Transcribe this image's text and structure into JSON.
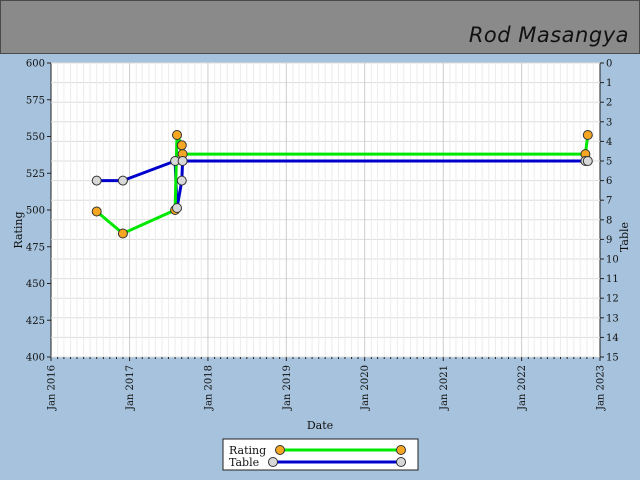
{
  "header": {
    "name": "Rod Masangya"
  },
  "chart_data": {
    "type": "line",
    "xlabel": "Date",
    "ylabel_left": "Rating",
    "ylabel_right": "Table",
    "ylim_left": [
      400,
      600
    ],
    "ylim_right": [
      0,
      15
    ],
    "left_ticks": [
      400,
      425,
      450,
      475,
      500,
      525,
      550,
      575,
      600
    ],
    "right_ticks": [
      0,
      1,
      2,
      3,
      4,
      5,
      6,
      7,
      8,
      9,
      10,
      11,
      12,
      13,
      14,
      15
    ],
    "x_ticks": [
      "Jan 2016",
      "Jan 2017",
      "Jan 2018",
      "Jan 2019",
      "Jan 2020",
      "Jan 2021",
      "Jan 2022",
      "Jan 2023"
    ],
    "grid": true,
    "legend_position": "bottom-center",
    "series": [
      {
        "name": "Rating",
        "axis": "left",
        "color": "#00e800",
        "marker_color": "#f5a623",
        "points": [
          [
            "2016-08-01",
            499
          ],
          [
            "2016-12-01",
            484
          ],
          [
            "2017-08-01",
            500
          ],
          [
            "2017-08-10",
            551
          ],
          [
            "2017-09-01",
            544
          ],
          [
            "2017-09-05",
            538
          ],
          [
            "2022-10-25",
            538
          ],
          [
            "2022-11-05",
            551
          ]
        ]
      },
      {
        "name": "Table",
        "axis": "right",
        "color": "#0000cc",
        "marker_color": "#d8d8d8",
        "points": [
          [
            "2016-08-01",
            6
          ],
          [
            "2016-12-01",
            6
          ],
          [
            "2017-08-01",
            5
          ],
          [
            "2017-08-10",
            7.4
          ],
          [
            "2017-09-01",
            6
          ],
          [
            "2017-09-05",
            5
          ],
          [
            "2022-10-25",
            5
          ],
          [
            "2022-11-05",
            5
          ]
        ]
      }
    ]
  }
}
